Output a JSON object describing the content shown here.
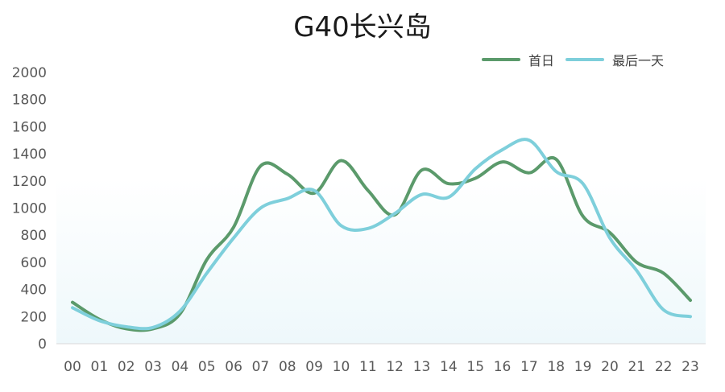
{
  "chart_data": {
    "type": "line",
    "title": "G40长兴岛",
    "categories": [
      "00",
      "01",
      "02",
      "03",
      "04",
      "05",
      "06",
      "07",
      "08",
      "09",
      "10",
      "11",
      "12",
      "13",
      "14",
      "15",
      "16",
      "17",
      "18",
      "19",
      "20",
      "21",
      "22",
      "23"
    ],
    "y_ticks": [
      "0",
      "200",
      "400",
      "600",
      "800",
      "1000",
      "1200",
      "1400",
      "1600",
      "1800",
      "2000"
    ],
    "ylim": [
      0,
      2000
    ],
    "grid": false,
    "legend_position": "top-right",
    "series": [
      {
        "name": "首日",
        "color": "#5b9a6b",
        "values": [
          305,
          180,
          110,
          110,
          220,
          620,
          860,
          1310,
          1250,
          1110,
          1350,
          1130,
          950,
          1280,
          1180,
          1220,
          1340,
          1260,
          1360,
          940,
          820,
          600,
          520,
          320
        ]
      },
      {
        "name": "最后一天",
        "color": "#7ecfdb",
        "values": [
          265,
          170,
          125,
          120,
          240,
          520,
          780,
          1000,
          1070,
          1130,
          870,
          850,
          960,
          1100,
          1080,
          1290,
          1430,
          1500,
          1270,
          1180,
          780,
          540,
          250,
          200
        ]
      }
    ]
  }
}
